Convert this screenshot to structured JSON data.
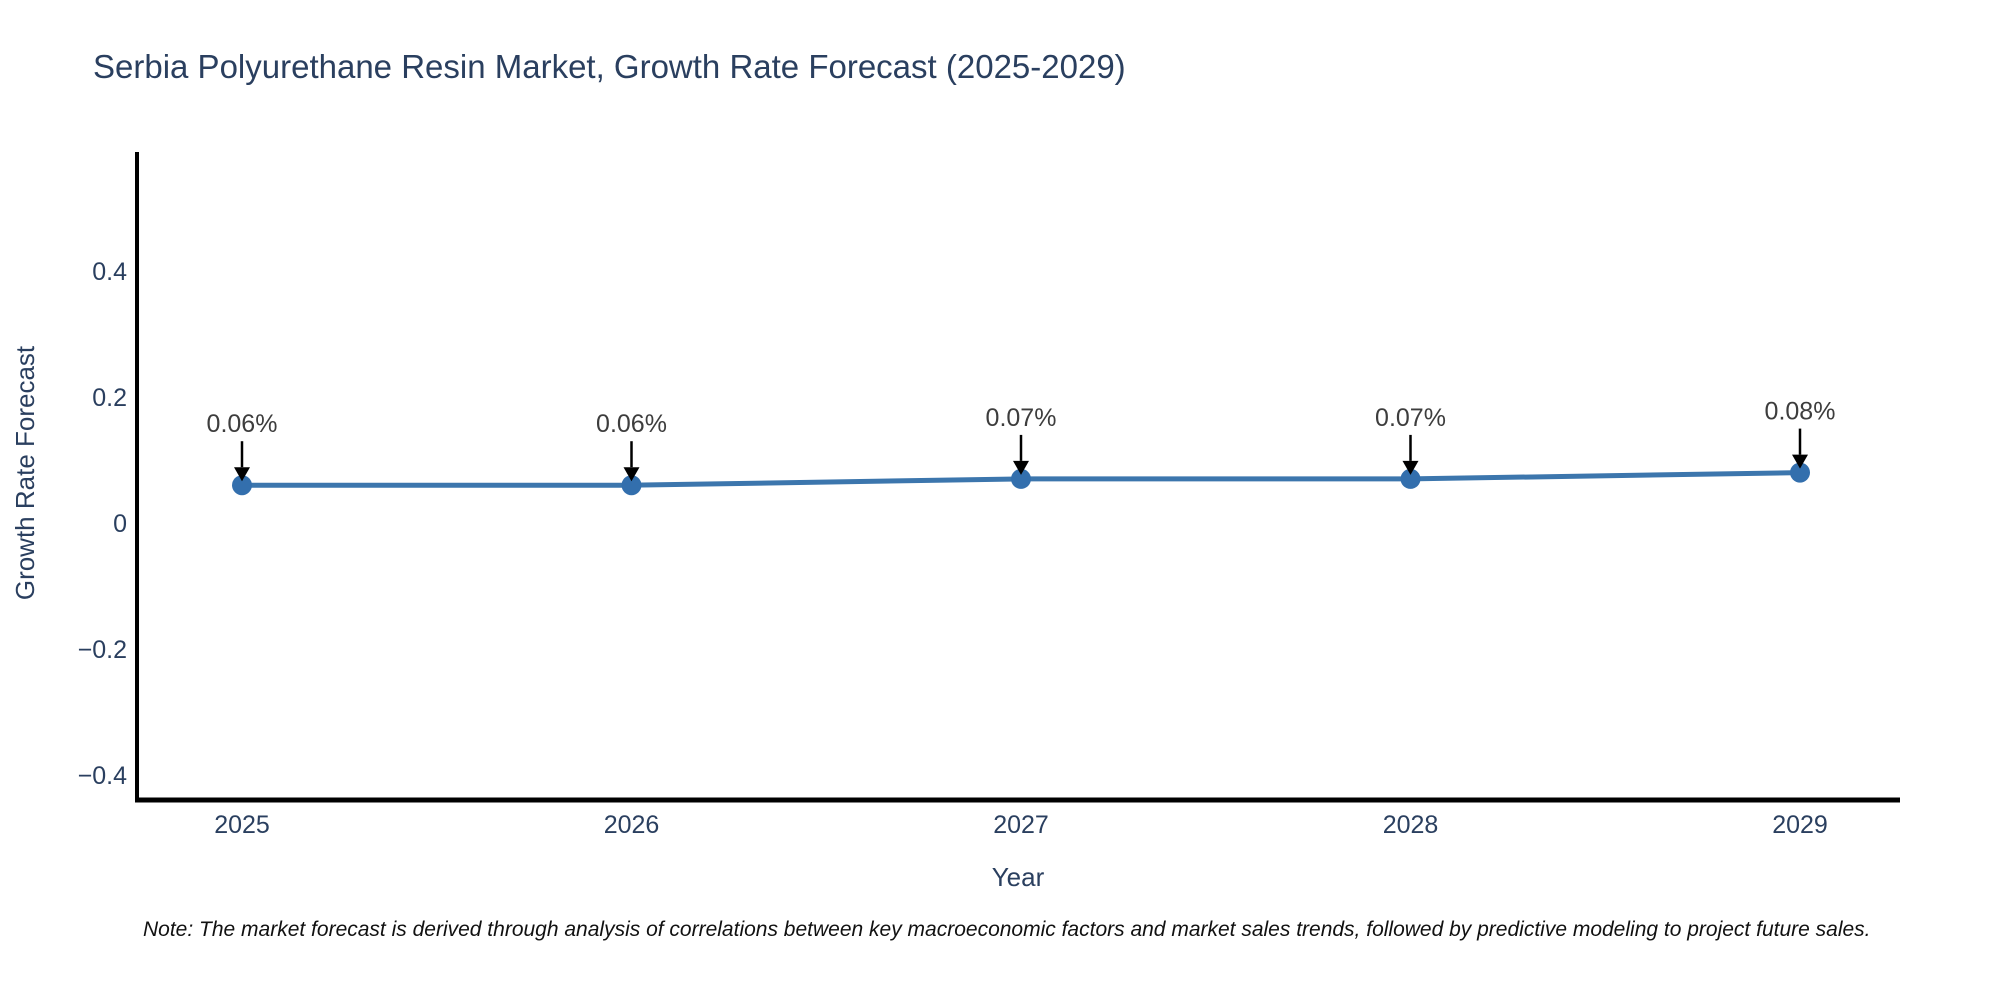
{
  "title": "Serbia Polyurethane Resin Market, Growth Rate Forecast (2025-2029)",
  "note": "Note: The market forecast is derived through analysis of correlations between key macroeconomic factors and market sales trends, followed by predictive modeling to project future sales.",
  "chart_data": {
    "type": "line",
    "x": [
      2025,
      2026,
      2027,
      2028,
      2029
    ],
    "series": [
      {
        "name": "Growth Rate Forecast",
        "values": [
          0.06,
          0.06,
          0.07,
          0.07,
          0.08
        ]
      }
    ],
    "point_labels": [
      "0.06%",
      "0.06%",
      "0.07%",
      "0.07%",
      "0.08%"
    ],
    "xlabel": "Year",
    "ylabel": "Growth Rate Forecast",
    "yticks": [
      0.4,
      0.2,
      0,
      -0.2,
      -0.4
    ],
    "ylim": [
      -0.445,
      0.575
    ],
    "grid": false,
    "legend": false,
    "colors": {
      "line": "#3c76ad",
      "marker": "#336fad",
      "axis": "#000000",
      "text": "#2a3f5f",
      "annotation": "#3d3d3d"
    }
  }
}
